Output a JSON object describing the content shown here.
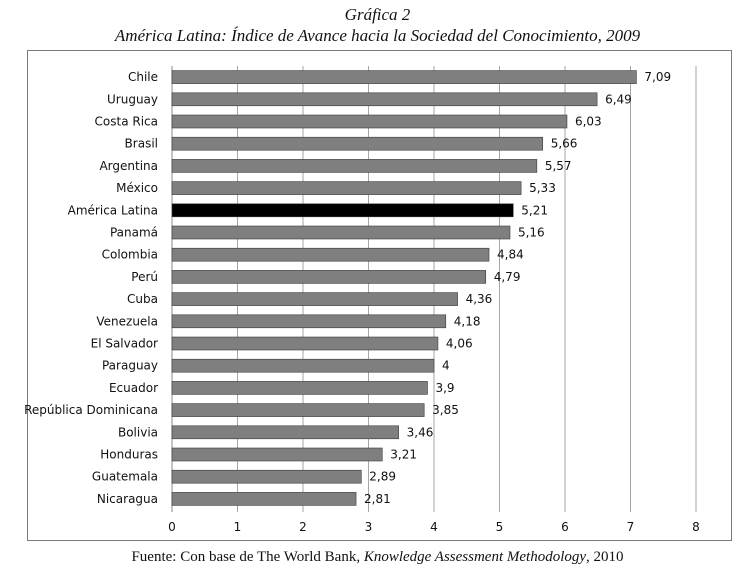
{
  "header": {
    "title": "Gráfica 2",
    "subtitle": "América Latina: Índice de Avance hacia la Sociedad del Conocimiento, 2009"
  },
  "footer": {
    "source_prefix": "Fuente: Con base de The World Bank, ",
    "source_italic": "Knowledge Assessment Methodology",
    "source_suffix": ", 2010"
  },
  "chart_data": {
    "type": "bar",
    "orientation": "horizontal",
    "categories": [
      "Chile",
      "Uruguay",
      "Costa Rica",
      "Brasil",
      "Argentina",
      "México",
      "América Latina",
      "Panamá",
      "Colombia",
      "Perú",
      "Cuba",
      "Venezuela",
      "El Salvador",
      "Paraguay",
      "Ecuador",
      "República Dominicana",
      "Bolivia",
      "Honduras",
      "Guatemala",
      "Nicaragua"
    ],
    "values": [
      7.09,
      6.49,
      6.03,
      5.66,
      5.57,
      5.33,
      5.21,
      5.16,
      4.84,
      4.79,
      4.36,
      4.18,
      4.06,
      4,
      3.9,
      3.85,
      3.46,
      3.21,
      2.89,
      2.81
    ],
    "value_labels": [
      "7,09",
      "6,49",
      "6,03",
      "5,66",
      "5,57",
      "5,33",
      "5,21",
      "5,16",
      "4,84",
      "4,79",
      "4,36",
      "4,18",
      "4,06",
      "4",
      "3,9",
      "3,85",
      "3,46",
      "3,21",
      "2,89",
      "2,81"
    ],
    "highlight_category": "América Latina",
    "xlim": [
      0,
      8
    ],
    "xticks": [
      "0",
      "1",
      "2",
      "3",
      "4",
      "5",
      "6",
      "7",
      "8"
    ],
    "grid": true,
    "colors": {
      "bar": "#7f7f7f",
      "highlight": "#000000",
      "grid": "#a6a6a6"
    }
  }
}
